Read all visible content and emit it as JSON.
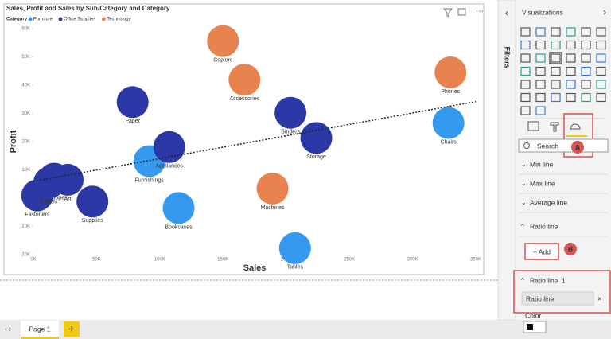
{
  "chart_data": {
    "type": "scatter",
    "title": "Sales, Profit and Sales by Sub-Category and Category",
    "legend_title": "Category",
    "x_label": "Sales",
    "y_label": "Profit",
    "xlim": [
      0,
      350000
    ],
    "ylim": [
      -20000,
      60000
    ],
    "xticks": [
      {
        "value": 0,
        "label": "0K"
      },
      {
        "value": 50000,
        "label": "50K"
      },
      {
        "value": 100000,
        "label": "100K"
      },
      {
        "value": 150000,
        "label": "150K"
      },
      {
        "value": 200000,
        "label": "200K"
      },
      {
        "value": 250000,
        "label": "250K"
      },
      {
        "value": 300000,
        "label": "300K"
      },
      {
        "value": 350000,
        "label": "350K"
      }
    ],
    "yticks": [
      {
        "value": -20000,
        "label": "-20K"
      },
      {
        "value": -10000,
        "label": "-10K"
      },
      {
        "value": 0,
        "label": "0K"
      },
      {
        "value": 10000,
        "label": "10K"
      },
      {
        "value": 20000,
        "label": "20K"
      },
      {
        "value": 30000,
        "label": "30K"
      },
      {
        "value": 40000,
        "label": "40K"
      },
      {
        "value": 50000,
        "label": "50K"
      },
      {
        "value": 60000,
        "label": "60K"
      }
    ],
    "trend_line": true,
    "series": [
      {
        "name": "Furniture",
        "color": "#3599f0",
        "labels": [
          "Bookcases",
          "Chairs",
          "Furnishings",
          "Tables"
        ],
        "x": [
          114900,
          328400,
          91700,
          207000
        ],
        "y": [
          -3500,
          26600,
          13100,
          -17700
        ]
      },
      {
        "name": "Office Supplies",
        "color": "#2b38a6",
        "labels": [
          "Appliances",
          "Art",
          "Binders",
          "Envelopes",
          "Fasteners",
          "Labels",
          "Paper",
          "Storage",
          "Supplies"
        ],
        "x": [
          107500,
          27100,
          203400,
          16500,
          3000,
          12500,
          78500,
          223800,
          46700
        ],
        "y": [
          18100,
          6500,
          30200,
          6900,
          950,
          5500,
          34000,
          21300,
          -1200
        ]
      },
      {
        "name": "Technology",
        "color": "#e8834f",
        "labels": [
          "Accessories",
          "Copiers",
          "Machines",
          "Phones"
        ],
        "x": [
          167000,
          150000,
          189200,
          330000
        ],
        "y": [
          41900,
          55600,
          3400,
          44500
        ]
      }
    ]
  },
  "filters_pane": {
    "label": "Filters"
  },
  "visualizations_pane": {
    "title": "Visualizations",
    "search_placeholder": "Search",
    "sections": [
      "Min line",
      "Max line",
      "Average line",
      "Ratio line"
    ],
    "add_button": "+ Add",
    "ratio_line_card": {
      "title": "Ratio line",
      "count": "1",
      "input_value": "Ratio line"
    },
    "color_label": "Color"
  },
  "annotations": [
    "A",
    "B"
  ],
  "page_tabs": [
    "Page 1"
  ]
}
